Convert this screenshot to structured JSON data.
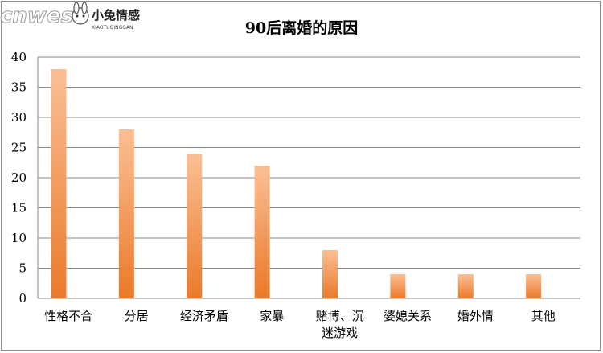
{
  "chart_data": {
    "type": "bar",
    "title": "90后离婚的原因",
    "categories": [
      [
        "性格不合"
      ],
      [
        "分居"
      ],
      [
        "经济矛盾"
      ],
      [
        "家暴"
      ],
      [
        "赌博、沉",
        "迷游戏"
      ],
      [
        "婆媳关系"
      ],
      [
        "婚外情"
      ],
      [
        "其他"
      ]
    ],
    "values": [
      38,
      28,
      24,
      22,
      8,
      4,
      4,
      4
    ],
    "ylim": [
      0,
      40
    ],
    "yticks": [
      0,
      5,
      10,
      15,
      20,
      25,
      30,
      35,
      40
    ],
    "grid": true,
    "bar_gradient": [
      "#fbbf94",
      "#ea7a2a"
    ]
  },
  "watermark": {
    "site": "cnwest",
    "brand": "小兔情感",
    "sub": "XIAOTUQINGGAN"
  }
}
